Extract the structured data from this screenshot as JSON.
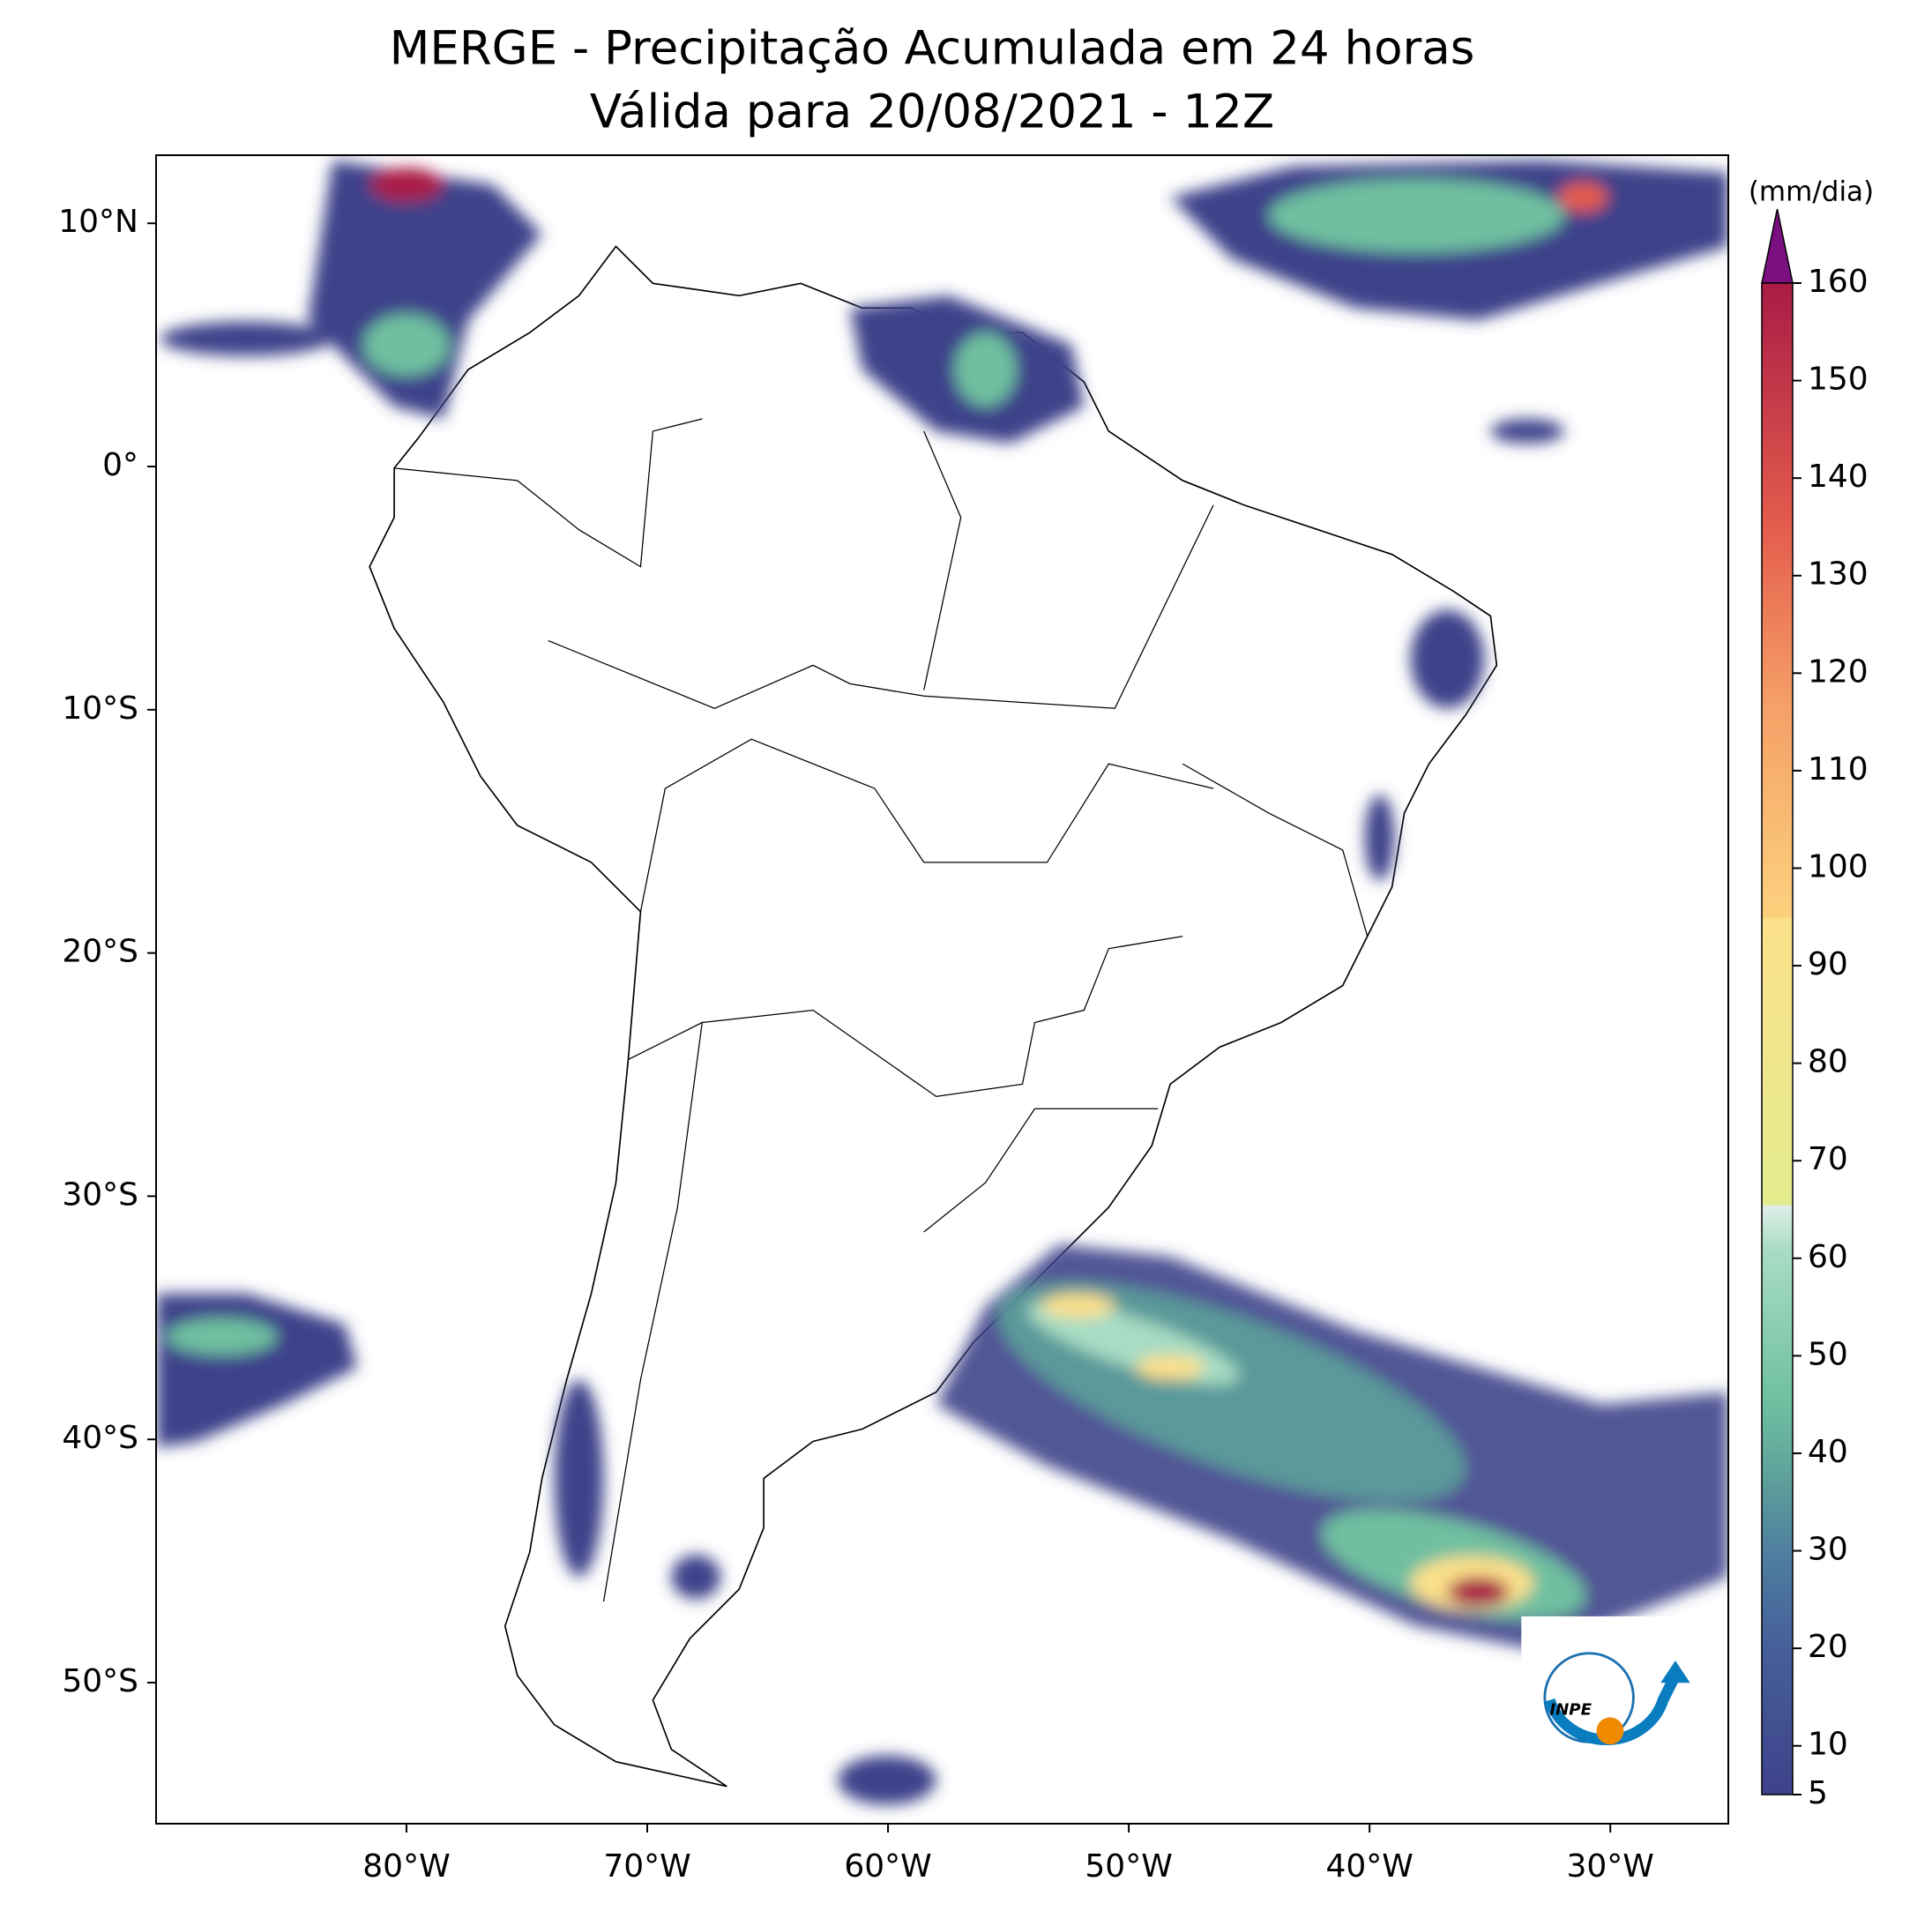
{
  "title": [
    "MERGE - Precipitação Acumulada em 24 horas",
    "Válida para 20/08/2021 - 12Z"
  ],
  "map": {
    "xlim": [
      -90.4,
      -25.1
    ],
    "ylim": [
      -55.8,
      12.8
    ],
    "xticks": [
      {
        "value": -80,
        "label": "80°W"
      },
      {
        "value": -70,
        "label": "70°W"
      },
      {
        "value": -60,
        "label": "60°W"
      },
      {
        "value": -50,
        "label": "50°W"
      },
      {
        "value": -40,
        "label": "40°W"
      },
      {
        "value": -30,
        "label": "30°W"
      }
    ],
    "yticks": [
      {
        "value": 10,
        "label": "10°N"
      },
      {
        "value": 0,
        "label": "0°"
      },
      {
        "value": -10,
        "label": "10°S"
      },
      {
        "value": -20,
        "label": "20°S"
      },
      {
        "value": -30,
        "label": "30°S"
      },
      {
        "value": -40,
        "label": "40°S"
      },
      {
        "value": -50,
        "label": "50°S"
      }
    ]
  },
  "colorbar": {
    "unit": "(mm/dia)",
    "lim": [
      5,
      160
    ],
    "ticks": [
      5,
      10,
      20,
      30,
      40,
      50,
      60,
      70,
      80,
      90,
      100,
      110,
      120,
      130,
      140,
      150,
      160
    ]
  },
  "logo": "INPE"
}
